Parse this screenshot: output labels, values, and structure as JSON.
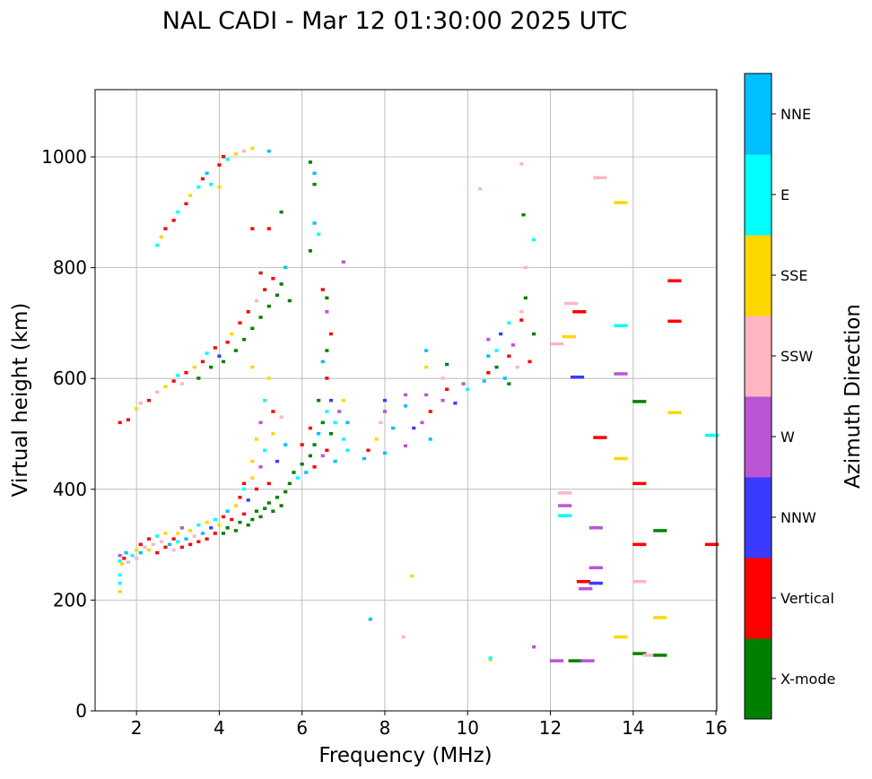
{
  "chart_data": {
    "type": "scatter",
    "title": "NAL CADI - Mar 12 01:30:00 2025 UTC",
    "xlabel": "Frequency (MHz)",
    "ylabel": "Virtual height (km)",
    "xlim": [
      1,
      16
    ],
    "ylim": [
      0,
      1120
    ],
    "xticks": [
      2,
      4,
      6,
      8,
      10,
      12,
      14,
      16
    ],
    "yticks": [
      0,
      200,
      400,
      600,
      800,
      1000
    ],
    "grid": true,
    "colorbar": {
      "label": "Azimuth Direction",
      "categories": [
        "X-mode",
        "Vertical",
        "NNW",
        "W",
        "SSW",
        "SSE",
        "E",
        "NNE"
      ],
      "colors": [
        "#008000",
        "#ff0000",
        "#3b3bff",
        "#ba55d3",
        "#ffb6c1",
        "#ffd700",
        "#00ffff",
        "#00bfff"
      ]
    },
    "point_format": [
      "frequency_mhz",
      "virtual_height_km",
      "direction_index"
    ],
    "points": [
      [
        1.6,
        215,
        5
      ],
      [
        1.6,
        230,
        6
      ],
      [
        1.6,
        245,
        6
      ],
      [
        1.6,
        270,
        6
      ],
      [
        1.6,
        280,
        3
      ],
      [
        1.65,
        265,
        5
      ],
      [
        1.7,
        275,
        1
      ],
      [
        1.75,
        285,
        7
      ],
      [
        1.8,
        268,
        4
      ],
      [
        1.9,
        280,
        6
      ],
      [
        2.0,
        290,
        5
      ],
      [
        2.0,
        275,
        4
      ],
      [
        2.1,
        300,
        1
      ],
      [
        2.1,
        285,
        7
      ],
      [
        2.2,
        295,
        4
      ],
      [
        2.3,
        310,
        1
      ],
      [
        2.3,
        290,
        5
      ],
      [
        2.4,
        300,
        4
      ],
      [
        2.5,
        285,
        1
      ],
      [
        2.5,
        315,
        6
      ],
      [
        2.6,
        305,
        4
      ],
      [
        2.7,
        295,
        1
      ],
      [
        2.7,
        320,
        5
      ],
      [
        2.8,
        300,
        7
      ],
      [
        2.9,
        310,
        1
      ],
      [
        2.9,
        290,
        4
      ],
      [
        3.0,
        305,
        6
      ],
      [
        3.0,
        320,
        5
      ],
      [
        3.1,
        295,
        1
      ],
      [
        3.1,
        330,
        3
      ],
      [
        3.2,
        310,
        7
      ],
      [
        3.3,
        300,
        1
      ],
      [
        3.3,
        325,
        5
      ],
      [
        3.4,
        315,
        4
      ],
      [
        3.5,
        335,
        6
      ],
      [
        3.5,
        305,
        1
      ],
      [
        3.6,
        320,
        7
      ],
      [
        3.7,
        340,
        5
      ],
      [
        3.7,
        310,
        1
      ],
      [
        3.8,
        330,
        2
      ],
      [
        3.9,
        345,
        6
      ],
      [
        3.9,
        320,
        1
      ],
      [
        4.0,
        335,
        5
      ],
      [
        4.1,
        350,
        1
      ],
      [
        4.1,
        320,
        0
      ],
      [
        4.2,
        330,
        0
      ],
      [
        4.2,
        360,
        7
      ],
      [
        4.3,
        345,
        1
      ],
      [
        4.4,
        370,
        5
      ],
      [
        4.4,
        325,
        0
      ],
      [
        4.5,
        340,
        0
      ],
      [
        4.5,
        385,
        1
      ],
      [
        4.6,
        400,
        6
      ],
      [
        4.6,
        355,
        1
      ],
      [
        4.7,
        335,
        0
      ],
      [
        4.7,
        380,
        2
      ],
      [
        4.8,
        345,
        0
      ],
      [
        4.8,
        420,
        5
      ],
      [
        4.9,
        360,
        0
      ],
      [
        4.9,
        400,
        1
      ],
      [
        5.0,
        350,
        0
      ],
      [
        5.0,
        440,
        3
      ],
      [
        5.1,
        365,
        0
      ],
      [
        5.1,
        470,
        6
      ],
      [
        5.2,
        375,
        0
      ],
      [
        5.2,
        410,
        1
      ],
      [
        5.3,
        360,
        0
      ],
      [
        5.3,
        500,
        5
      ],
      [
        5.4,
        385,
        0
      ],
      [
        5.4,
        450,
        2
      ],
      [
        5.5,
        370,
        0
      ],
      [
        5.5,
        530,
        4
      ],
      [
        5.6,
        395,
        0
      ],
      [
        5.6,
        480,
        7
      ],
      [
        5.7,
        410,
        0
      ],
      [
        5.8,
        430,
        0
      ],
      [
        5.9,
        420,
        6
      ],
      [
        6.0,
        445,
        0
      ],
      [
        6.0,
        480,
        1
      ],
      [
        6.1,
        430,
        7
      ],
      [
        6.2,
        460,
        0
      ],
      [
        6.2,
        510,
        1
      ],
      [
        6.3,
        480,
        0
      ],
      [
        6.3,
        440,
        1
      ],
      [
        6.4,
        500,
        7
      ],
      [
        6.4,
        560,
        0
      ],
      [
        6.5,
        520,
        0
      ],
      [
        6.5,
        460,
        3
      ],
      [
        6.6,
        540,
        6
      ],
      [
        6.6,
        470,
        1
      ],
      [
        6.7,
        500,
        0
      ],
      [
        6.7,
        560,
        2
      ],
      [
        6.8,
        450,
        7
      ],
      [
        6.8,
        520,
        6
      ],
      [
        6.9,
        540,
        3
      ],
      [
        7.0,
        490,
        6
      ],
      [
        7.0,
        560,
        5
      ],
      [
        7.1,
        470,
        6
      ],
      [
        7.1,
        520,
        7
      ],
      [
        4.6,
        410,
        1
      ],
      [
        4.8,
        450,
        5
      ],
      [
        4.9,
        490,
        5
      ],
      [
        5.0,
        520,
        3
      ],
      [
        5.1,
        560,
        6
      ],
      [
        5.2,
        600,
        5
      ],
      [
        4.8,
        620,
        5
      ],
      [
        5.3,
        540,
        1
      ],
      [
        1.6,
        520,
        1
      ],
      [
        1.8,
        525,
        1
      ],
      [
        2.0,
        545,
        5
      ],
      [
        2.1,
        555,
        4
      ],
      [
        2.3,
        560,
        1
      ],
      [
        2.5,
        575,
        4
      ],
      [
        2.7,
        585,
        5
      ],
      [
        2.9,
        595,
        1
      ],
      [
        3.0,
        605,
        6
      ],
      [
        3.1,
        590,
        4
      ],
      [
        3.2,
        610,
        1
      ],
      [
        3.4,
        620,
        5
      ],
      [
        3.5,
        600,
        0
      ],
      [
        3.6,
        630,
        1
      ],
      [
        3.7,
        645,
        6
      ],
      [
        3.8,
        620,
        0
      ],
      [
        3.9,
        655,
        1
      ],
      [
        4.0,
        640,
        2
      ],
      [
        4.1,
        630,
        0
      ],
      [
        4.2,
        665,
        1
      ],
      [
        4.3,
        680,
        5
      ],
      [
        4.4,
        650,
        0
      ],
      [
        4.5,
        700,
        1
      ],
      [
        4.6,
        670,
        0
      ],
      [
        4.7,
        720,
        1
      ],
      [
        4.8,
        690,
        0
      ],
      [
        4.9,
        740,
        4
      ],
      [
        5.0,
        710,
        0
      ],
      [
        5.1,
        760,
        1
      ],
      [
        5.2,
        730,
        0
      ],
      [
        5.3,
        780,
        1
      ],
      [
        5.4,
        750,
        0
      ],
      [
        5.5,
        770,
        0
      ],
      [
        5.6,
        800,
        7
      ],
      [
        5.7,
        740,
        0
      ],
      [
        5.0,
        790,
        1
      ],
      [
        5.2,
        870,
        1
      ],
      [
        5.5,
        900,
        0
      ],
      [
        4.8,
        870,
        1
      ],
      [
        2.5,
        840,
        6
      ],
      [
        2.6,
        855,
        5
      ],
      [
        2.7,
        870,
        1
      ],
      [
        2.9,
        885,
        1
      ],
      [
        3.0,
        900,
        6
      ],
      [
        3.2,
        915,
        1
      ],
      [
        3.3,
        930,
        5
      ],
      [
        3.5,
        945,
        6
      ],
      [
        3.6,
        960,
        1
      ],
      [
        3.7,
        970,
        7
      ],
      [
        3.8,
        950,
        6
      ],
      [
        4.0,
        985,
        1
      ],
      [
        4.1,
        1000,
        1
      ],
      [
        4.2,
        995,
        6
      ],
      [
        4.4,
        1005,
        5
      ],
      [
        4.6,
        1010,
        4
      ],
      [
        4.8,
        1015,
        5
      ],
      [
        5.2,
        1010,
        7
      ],
      [
        4.0,
        945,
        5
      ],
      [
        6.2,
        990,
        0
      ],
      [
        6.3,
        970,
        7
      ],
      [
        6.3,
        950,
        0
      ],
      [
        6.3,
        880,
        7
      ],
      [
        6.4,
        860,
        6
      ],
      [
        6.2,
        830,
        0
      ],
      [
        6.5,
        760,
        1
      ],
      [
        6.6,
        745,
        0
      ],
      [
        6.6,
        720,
        3
      ],
      [
        6.7,
        680,
        1
      ],
      [
        6.6,
        650,
        0
      ],
      [
        6.5,
        630,
        7
      ],
      [
        6.6,
        600,
        1
      ],
      [
        7.0,
        810,
        3
      ],
      [
        7.5,
        455,
        7
      ],
      [
        7.6,
        470,
        1
      ],
      [
        7.8,
        490,
        5
      ],
      [
        7.9,
        520,
        4
      ],
      [
        8.0,
        560,
        2
      ],
      [
        8.0,
        540,
        3
      ],
      [
        8.0,
        465,
        7
      ],
      [
        8.2,
        510,
        7
      ],
      [
        8.5,
        570,
        3
      ],
      [
        8.5,
        550,
        7
      ],
      [
        8.5,
        478,
        3
      ],
      [
        8.7,
        510,
        2
      ],
      [
        8.9,
        520,
        3
      ],
      [
        9.0,
        570,
        3
      ],
      [
        9.0,
        620,
        5
      ],
      [
        9.0,
        650,
        7
      ],
      [
        9.1,
        540,
        1
      ],
      [
        9.1,
        490,
        7
      ],
      [
        9.4,
        560,
        3
      ],
      [
        9.4,
        600,
        4
      ],
      [
        9.5,
        625,
        0
      ],
      [
        9.5,
        580,
        1
      ],
      [
        9.7,
        555,
        2
      ],
      [
        9.9,
        590,
        3
      ],
      [
        10.0,
        580,
        6
      ],
      [
        10.4,
        595,
        7
      ],
      [
        10.5,
        610,
        1
      ],
      [
        10.5,
        640,
        7
      ],
      [
        10.5,
        670,
        3
      ],
      [
        10.7,
        650,
        6
      ],
      [
        10.7,
        620,
        0
      ],
      [
        10.8,
        680,
        2
      ],
      [
        10.9,
        600,
        7
      ],
      [
        11.0,
        640,
        1
      ],
      [
        11.0,
        590,
        0
      ],
      [
        11.0,
        700,
        6
      ],
      [
        11.1,
        660,
        3
      ],
      [
        11.2,
        620,
        4
      ],
      [
        11.3,
        720,
        4
      ],
      [
        11.3,
        705,
        1
      ],
      [
        11.4,
        745,
        0
      ],
      [
        11.5,
        630,
        1
      ],
      [
        11.6,
        680,
        0
      ],
      [
        7.65,
        165,
        7
      ],
      [
        8.45,
        133,
        4
      ],
      [
        8.65,
        243,
        5
      ],
      [
        10.55,
        92,
        5
      ],
      [
        10.55,
        95,
        6
      ],
      [
        11.6,
        115,
        3
      ],
      [
        12.15,
        90,
        3
      ],
      [
        12.6,
        90,
        0
      ],
      [
        12.9,
        90,
        3
      ],
      [
        12.85,
        220,
        3
      ],
      [
        12.8,
        233,
        1
      ],
      [
        13.1,
        230,
        2
      ],
      [
        13.1,
        258,
        3
      ],
      [
        13.1,
        330,
        3
      ],
      [
        12.35,
        352,
        6
      ],
      [
        12.35,
        370,
        3
      ],
      [
        12.35,
        393,
        4
      ],
      [
        13.2,
        493,
        1
      ],
      [
        13.7,
        455,
        5
      ],
      [
        13.7,
        133,
        5
      ],
      [
        14.15,
        103,
        0
      ],
      [
        14.4,
        100,
        4
      ],
      [
        14.65,
        100,
        0
      ],
      [
        14.15,
        233,
        4
      ],
      [
        14.15,
        300,
        1
      ],
      [
        14.15,
        410,
        1
      ],
      [
        14.15,
        558,
        0
      ],
      [
        14.65,
        168,
        5
      ],
      [
        14.65,
        325,
        0
      ],
      [
        15.0,
        538,
        5
      ],
      [
        15.9,
        300,
        1
      ],
      [
        15.9,
        497,
        6
      ],
      [
        15.0,
        703,
        1
      ],
      [
        15.0,
        776,
        1
      ],
      [
        13.7,
        695,
        6
      ],
      [
        13.7,
        608,
        3
      ],
      [
        13.7,
        917,
        5
      ],
      [
        13.2,
        962,
        4
      ],
      [
        12.7,
        720,
        1
      ],
      [
        12.5,
        735,
        4
      ],
      [
        12.65,
        602,
        2
      ],
      [
        12.45,
        675,
        5
      ],
      [
        12.15,
        662,
        4
      ],
      [
        11.6,
        850,
        6
      ],
      [
        11.35,
        895,
        0
      ],
      [
        11.3,
        987,
        4
      ],
      [
        10.3,
        942,
        4
      ],
      [
        11.4,
        800,
        4
      ]
    ]
  }
}
